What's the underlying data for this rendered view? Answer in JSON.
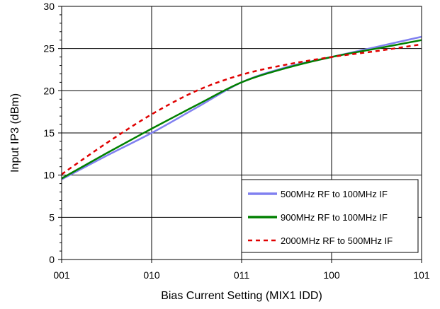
{
  "chart_data": {
    "type": "line",
    "xlabel": "Bias Current Setting (MIX1 IDD)",
    "ylabel": "Input IP3 (dBm)",
    "categories": [
      "001",
      "010",
      "011",
      "100",
      "101"
    ],
    "ylim": [
      0,
      30
    ],
    "yticks": [
      0,
      5,
      10,
      15,
      20,
      25,
      30
    ],
    "grid": true,
    "legend_position": "bottom-right",
    "series": [
      {
        "name": "500MHz RF to 100MHz IF",
        "color": "#8080f0",
        "style": "solid",
        "x": [
          0,
          0.5,
          1.0,
          1.5,
          2.0,
          2.5,
          3.0,
          3.5,
          4.0
        ],
        "values": [
          9.5,
          12.3,
          15.0,
          18.0,
          21.0,
          22.8,
          24.0,
          25.2,
          26.4
        ]
      },
      {
        "name": "900MHz RF to 100MHz IF",
        "color": "#008000",
        "style": "solid",
        "x": [
          0,
          0.5,
          1.0,
          1.5,
          2.0,
          2.5,
          3.0,
          3.5,
          4.0
        ],
        "values": [
          9.6,
          12.6,
          15.5,
          18.3,
          21.0,
          22.7,
          24.0,
          25.0,
          26.0
        ]
      },
      {
        "name": "2000MHz RF to 500MHz IF",
        "color": "#e00000",
        "style": "dashed",
        "x": [
          0,
          0.5,
          1.0,
          1.5,
          2.0,
          2.5,
          3.0,
          3.5,
          4.0
        ],
        "values": [
          10.1,
          13.8,
          17.2,
          20.0,
          21.9,
          23.1,
          24.0,
          24.7,
          25.5
        ]
      }
    ]
  }
}
